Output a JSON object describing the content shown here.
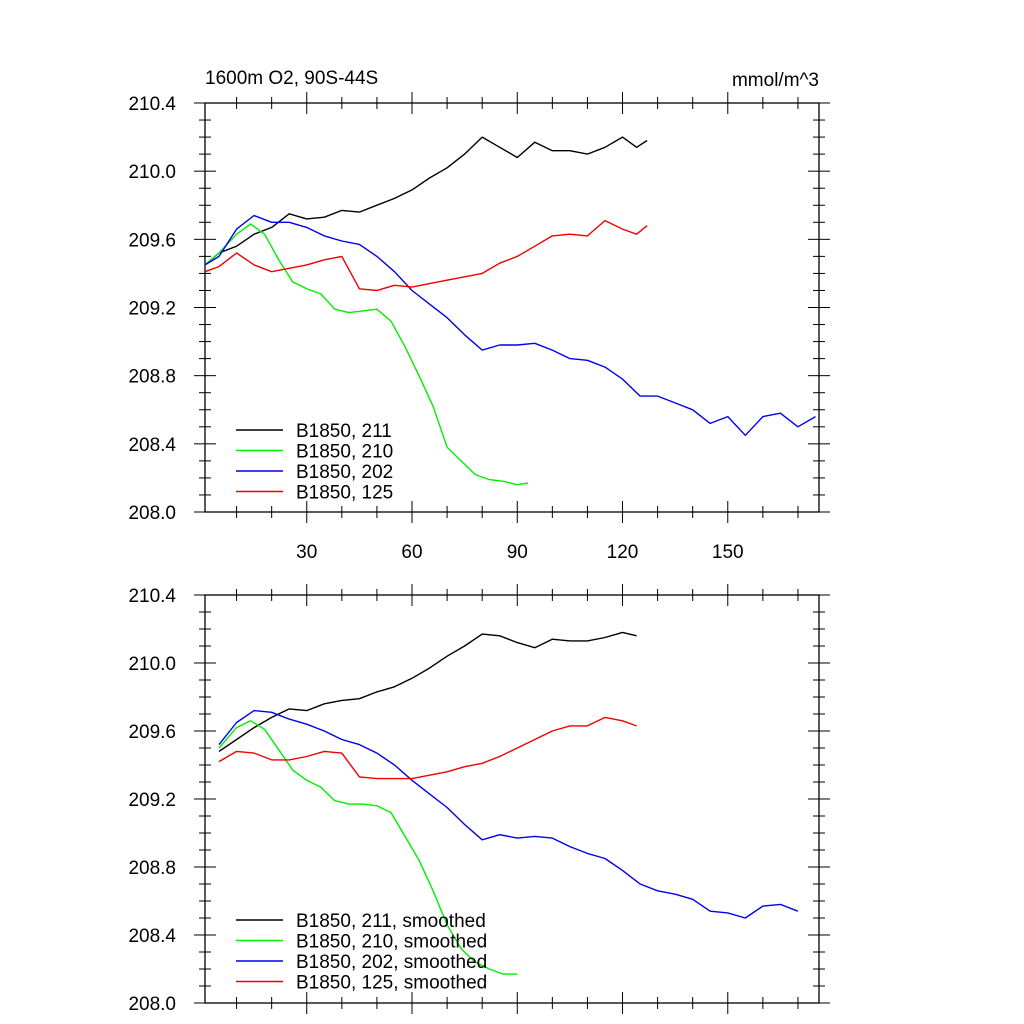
{
  "chart_data": [
    {
      "type": "line",
      "title_left": "1600m O2, 90S-44S",
      "title_right": "mmol/m^3",
      "ylim": [
        208.0,
        210.4
      ],
      "xlim": [
        1,
        176
      ],
      "yticks": [
        "208.0",
        "208.4",
        "208.8",
        "209.2",
        "209.6",
        "210.0",
        "210.4"
      ],
      "xticks": [
        "30",
        "60",
        "90",
        "120",
        "150"
      ],
      "series": [
        {
          "name": "B1850, 211",
          "color": "#000000",
          "x": [
            1,
            5,
            10,
            15,
            20,
            25,
            30,
            35,
            40,
            45,
            50,
            55,
            60,
            65,
            70,
            75,
            80,
            85,
            90,
            95,
            100,
            105,
            110,
            115,
            120,
            124,
            127
          ],
          "y": [
            209.45,
            209.52,
            209.56,
            209.63,
            209.67,
            209.75,
            209.72,
            209.73,
            209.77,
            209.76,
            209.8,
            209.84,
            209.89,
            209.96,
            210.02,
            210.1,
            210.2,
            210.14,
            210.08,
            210.17,
            210.12,
            210.12,
            210.1,
            210.14,
            210.2,
            210.14,
            210.18
          ]
        },
        {
          "name": "B1850, 210",
          "color": "#00ee00",
          "x": [
            1,
            5,
            10,
            14,
            18,
            22,
            26,
            30,
            34,
            38,
            42,
            46,
            50,
            54,
            58,
            62,
            66,
            70,
            74,
            78,
            82,
            86,
            90,
            93
          ],
          "y": [
            209.45,
            209.52,
            209.63,
            209.69,
            209.63,
            209.48,
            209.35,
            209.31,
            209.28,
            209.19,
            209.17,
            209.18,
            209.19,
            209.12,
            208.97,
            208.8,
            208.62,
            208.38,
            208.3,
            208.22,
            208.19,
            208.18,
            208.16,
            208.17
          ]
        },
        {
          "name": "B1850, 202",
          "color": "#0000ee",
          "x": [
            1,
            5,
            10,
            15,
            20,
            25,
            30,
            35,
            40,
            45,
            50,
            55,
            60,
            65,
            70,
            75,
            80,
            85,
            90,
            95,
            100,
            105,
            110,
            115,
            120,
            125,
            130,
            135,
            140,
            145,
            150,
            155,
            160,
            165,
            170,
            175
          ],
          "y": [
            209.45,
            209.5,
            209.66,
            209.74,
            209.7,
            209.7,
            209.67,
            209.62,
            209.59,
            209.57,
            209.5,
            209.41,
            209.3,
            209.22,
            209.14,
            209.04,
            208.95,
            208.98,
            208.98,
            208.99,
            208.95,
            208.9,
            208.89,
            208.85,
            208.78,
            208.68,
            208.68,
            208.64,
            208.6,
            208.52,
            208.56,
            208.45,
            208.56,
            208.58,
            208.5,
            208.56
          ]
        },
        {
          "name": "B1850, 125",
          "color": "#ee0000",
          "x": [
            1,
            5,
            10,
            15,
            20,
            25,
            30,
            35,
            40,
            45,
            50,
            55,
            60,
            65,
            70,
            75,
            80,
            85,
            90,
            95,
            100,
            105,
            110,
            115,
            120,
            124,
            127
          ],
          "y": [
            209.41,
            209.44,
            209.52,
            209.45,
            209.41,
            209.43,
            209.45,
            209.48,
            209.5,
            209.31,
            209.3,
            209.33,
            209.32,
            209.34,
            209.36,
            209.38,
            209.4,
            209.46,
            209.5,
            209.56,
            209.62,
            209.63,
            209.62,
            209.71,
            209.66,
            209.63,
            209.68
          ]
        }
      ]
    },
    {
      "type": "line",
      "ylim": [
        208.0,
        210.4
      ],
      "xlim": [
        1,
        176
      ],
      "yticks": [
        "208.0",
        "208.4",
        "208.8",
        "209.2",
        "209.6",
        "210.0",
        "210.4"
      ],
      "series": [
        {
          "name": "B1850, 211, smoothed",
          "color": "#000000",
          "x": [
            5,
            10,
            15,
            20,
            25,
            30,
            35,
            40,
            45,
            50,
            55,
            60,
            65,
            70,
            75,
            80,
            85,
            90,
            95,
            100,
            105,
            110,
            115,
            120,
            124
          ],
          "y": [
            209.48,
            209.55,
            209.62,
            209.68,
            209.73,
            209.72,
            209.76,
            209.78,
            209.79,
            209.83,
            209.86,
            209.91,
            209.97,
            210.04,
            210.1,
            210.17,
            210.16,
            210.12,
            210.09,
            210.14,
            210.13,
            210.13,
            210.15,
            210.18,
            210.16
          ]
        },
        {
          "name": "B1850, 210, smoothed",
          "color": "#00ee00",
          "x": [
            5,
            10,
            14,
            18,
            22,
            26,
            30,
            34,
            38,
            42,
            46,
            50,
            54,
            58,
            62,
            66,
            70,
            74,
            78,
            82,
            86,
            90
          ],
          "y": [
            209.5,
            209.62,
            209.66,
            209.61,
            209.49,
            209.37,
            209.31,
            209.27,
            209.19,
            209.17,
            209.17,
            209.16,
            209.12,
            208.98,
            208.84,
            208.66,
            208.46,
            208.32,
            208.24,
            208.2,
            208.17,
            208.17
          ]
        },
        {
          "name": "B1850, 202, smoothed",
          "color": "#0000ee",
          "x": [
            5,
            10,
            15,
            20,
            25,
            30,
            35,
            40,
            45,
            50,
            55,
            60,
            65,
            70,
            75,
            80,
            85,
            90,
            95,
            100,
            105,
            110,
            115,
            120,
            125,
            130,
            135,
            140,
            145,
            150,
            155,
            160,
            165,
            170
          ],
          "y": [
            209.52,
            209.65,
            209.72,
            209.71,
            209.67,
            209.64,
            209.6,
            209.55,
            209.52,
            209.47,
            209.4,
            209.31,
            209.23,
            209.15,
            209.05,
            208.96,
            208.99,
            208.97,
            208.98,
            208.97,
            208.92,
            208.88,
            208.85,
            208.78,
            208.7,
            208.66,
            208.64,
            208.61,
            208.54,
            208.53,
            208.5,
            208.57,
            208.58,
            208.54
          ]
        },
        {
          "name": "B1850, 125, smoothed",
          "color": "#ee0000",
          "x": [
            5,
            10,
            15,
            20,
            25,
            30,
            35,
            40,
            45,
            50,
            55,
            60,
            65,
            70,
            75,
            80,
            85,
            90,
            95,
            100,
            105,
            110,
            115,
            120,
            124
          ],
          "y": [
            209.42,
            209.48,
            209.47,
            209.43,
            209.43,
            209.45,
            209.48,
            209.47,
            209.33,
            209.32,
            209.32,
            209.32,
            209.34,
            209.36,
            209.39,
            209.41,
            209.45,
            209.5,
            209.55,
            209.6,
            209.63,
            209.63,
            209.68,
            209.66,
            209.63
          ]
        }
      ]
    }
  ]
}
